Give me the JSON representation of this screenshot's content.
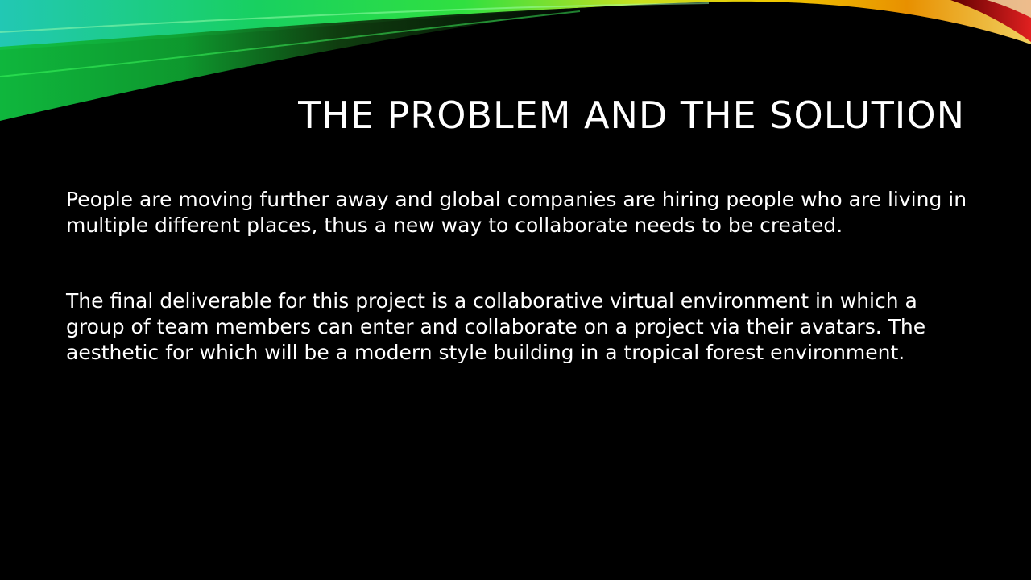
{
  "slide": {
    "title": "THE PROBLEM AND THE SOLUTION",
    "paragraphs": [
      "People are moving further away and global companies are hiring people who are living in multiple different places, thus a new way to collaborate needs to be created.",
      "The final deliverable for this project is a collaborative virtual environment in which a group of team members can enter and collaborate on a project via their avatars. The aesthetic for which will be a modern style building in a tropical forest environment."
    ]
  },
  "theme": {
    "background": "#000000",
    "text_color": "#ffffff",
    "swoosh_colors": [
      "#00c8c8",
      "#22e050",
      "#f0d000",
      "#e07000",
      "#c01818"
    ]
  }
}
